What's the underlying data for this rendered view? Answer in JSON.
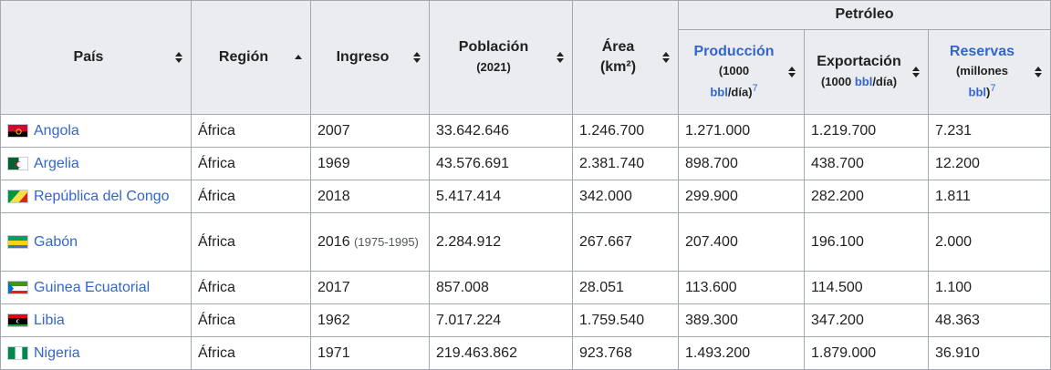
{
  "headers": {
    "pais": "País",
    "region": "Región",
    "ingreso": "Ingreso",
    "poblacion": "Población",
    "poblacion_sub": "(2021)",
    "area": "Área",
    "area_sub": "(km²)",
    "petroleo": "Petróleo",
    "produccion": "Producción",
    "produccion_sub1": "(1000",
    "produccion_sub2_link": "bbl",
    "produccion_sub2_rest": "/día)",
    "produccion_ref": "7",
    "exportacion": "Exportación",
    "exportacion_sub_pre": "(1000 ",
    "exportacion_sub_link": "bbl",
    "exportacion_sub_post": "/día)",
    "reservas": "Reservas",
    "reservas_sub1": "(millones",
    "reservas_sub2_link": "bbl",
    "reservas_sub2_rest": ")",
    "reservas_ref": "7"
  },
  "icons": {
    "sort": "sort-both-icon",
    "sort_asc": "sort-ascending-icon"
  },
  "rows": [
    {
      "pais": "Angola",
      "flag": "angola-flag-icon",
      "region": "África",
      "ingreso": "2007",
      "ingreso_extra": "",
      "poblacion": "33.642.646",
      "area": "1.246.700",
      "produccion": "1.271.000",
      "exportacion": "1.219.700",
      "reservas": "7.231"
    },
    {
      "pais": "Argelia",
      "flag": "algeria-flag-icon",
      "region": "África",
      "ingreso": "1969",
      "ingreso_extra": "",
      "poblacion": "43.576.691",
      "area": "2.381.740",
      "produccion": "898.700",
      "exportacion": "438.700",
      "reservas": "12.200"
    },
    {
      "pais": "República del Congo",
      "flag": "congo-flag-icon",
      "region": "África",
      "ingreso": "2018",
      "ingreso_extra": "",
      "poblacion": "5.417.414",
      "area": "342.000",
      "produccion": "299.900",
      "exportacion": "282.200",
      "reservas": "1.811"
    },
    {
      "pais": "Gabón",
      "flag": "gabon-flag-icon",
      "region": "África",
      "ingreso": "2016",
      "ingreso_extra": "(1975-1995)",
      "poblacion": "2.284.912",
      "area": "267.667",
      "produccion": "207.400",
      "exportacion": "196.100",
      "reservas": "2.000"
    },
    {
      "pais": "Guinea Ecuatorial",
      "flag": "equatorial-guinea-flag-icon",
      "region": "África",
      "ingreso": "2017",
      "ingreso_extra": "",
      "poblacion": "857.008",
      "area": "28.051",
      "produccion": "113.600",
      "exportacion": "114.500",
      "reservas": "1.100"
    },
    {
      "pais": "Libia",
      "flag": "libya-flag-icon",
      "region": "África",
      "ingreso": "1962",
      "ingreso_extra": "",
      "poblacion": "7.017.224",
      "area": "1.759.540",
      "produccion": "389.300",
      "exportacion": "347.200",
      "reservas": "48.363"
    },
    {
      "pais": "Nigeria",
      "flag": "nigeria-flag-icon",
      "region": "África",
      "ingreso": "1971",
      "ingreso_extra": "",
      "poblacion": "219.463.862",
      "area": "923.768",
      "produccion": "1.493.200",
      "exportacion": "1.879.000",
      "reservas": "36.910"
    }
  ],
  "colors": {
    "header_bg": "#eaecf0",
    "border": "#a2a9b1",
    "link": "#3366cc",
    "text": "#202122"
  }
}
